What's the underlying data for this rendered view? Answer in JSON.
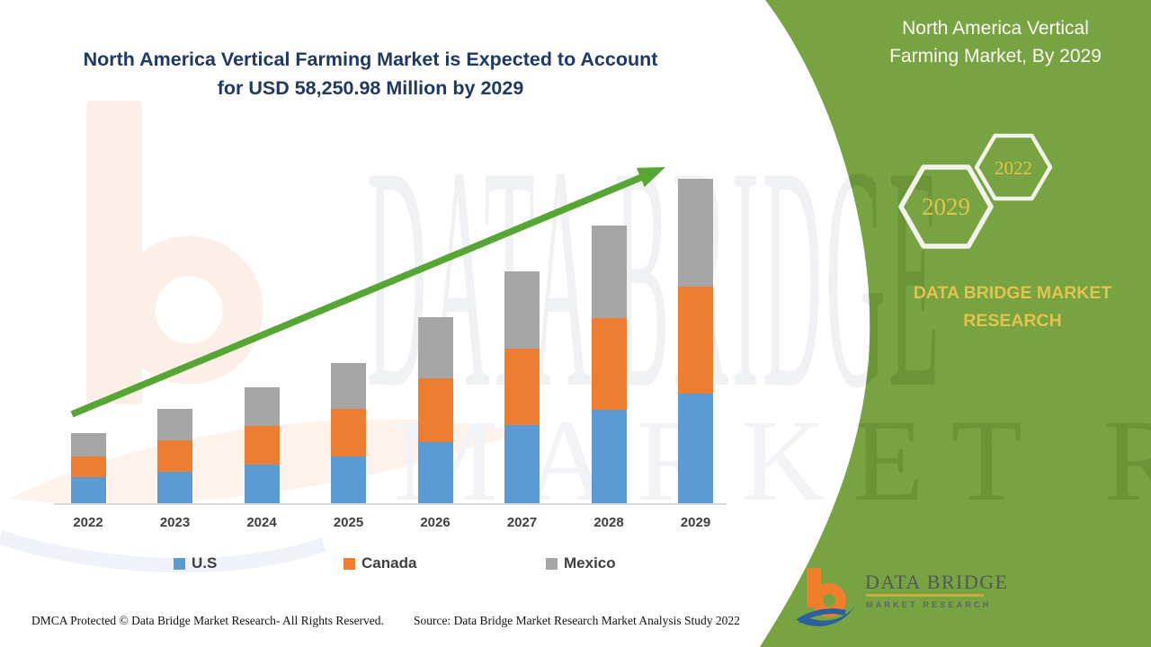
{
  "header": {
    "title_line1": "North America Vertical Farming Market is Expected to Account",
    "title_line2": "for USD 58,250.98 Million by 2029"
  },
  "side_panel": {
    "title": "North America Vertical Farming Market, By 2029",
    "hexagons": [
      {
        "label": "2029"
      },
      {
        "label": "2022"
      }
    ],
    "brand": "DATA BRIDGE MARKET RESEARCH"
  },
  "chart_data": {
    "type": "bar",
    "stacked": true,
    "unit": "USD Million",
    "categories": [
      "2022",
      "2023",
      "2024",
      "2025",
      "2026",
      "2027",
      "2028",
      "2029"
    ],
    "series": [
      {
        "name": "U.S",
        "color": "#5B9BD5",
        "values": [
          4680,
          5650,
          6940,
          8390,
          10970,
          14040,
          16780,
          19690
        ]
      },
      {
        "name": "Canada",
        "color": "#ED7D31",
        "values": [
          3710,
          5650,
          6940,
          8550,
          11460,
          13720,
          16460,
          19200
        ]
      },
      {
        "name": "Mexico",
        "color": "#A5A5A5",
        "values": [
          4200,
          5650,
          6940,
          8230,
          10970,
          13880,
          16620,
          19360
        ]
      }
    ],
    "totals_estimated": [
      12590,
      16950,
      20820,
      25170,
      33400,
      41640,
      49860,
      58250
    ],
    "stated_final_total": "USD 58,250.98 Million by 2029",
    "ylim": [
      0,
      60000
    ],
    "grid": false,
    "legend_position": "bottom",
    "trend_arrow": true
  },
  "watermark": {
    "line1": "DATA BRIDGE",
    "line2": "MARKET RESEARCH"
  },
  "logo": {
    "name": "DATA BRIDGE",
    "tagline": "MARKET RESEARCH"
  },
  "footer": {
    "left": "DMCA Protected © Data Bridge Market Research- All Rights Reserved.",
    "right": "Source: Data Bridge Market Research Market Analysis Study 2022"
  },
  "colors": {
    "panel_green": "#77A340",
    "arrow_green": "#55A632",
    "title_navy": "#1F3864",
    "gold": "#E3C24F",
    "us_blue": "#5B9BD5",
    "canada_orange": "#ED7D31",
    "mexico_gray": "#A5A5A5"
  }
}
